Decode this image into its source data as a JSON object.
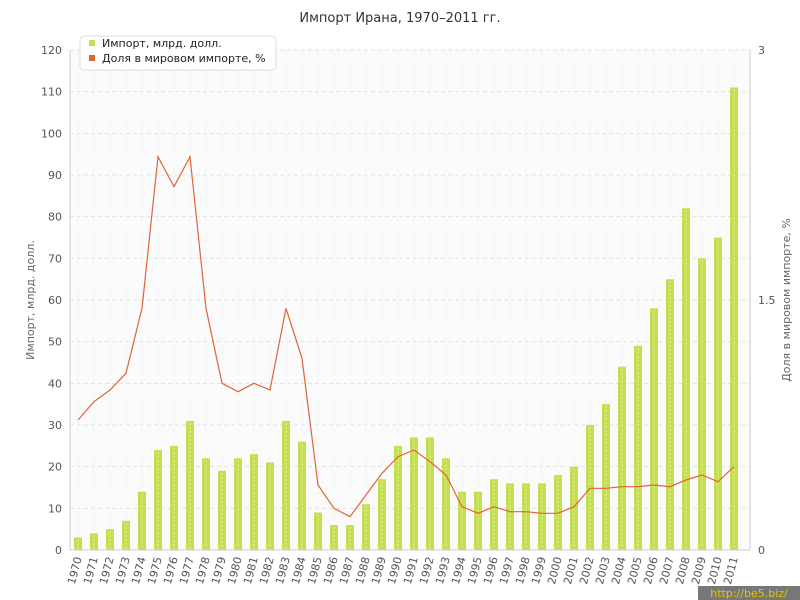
{
  "chart_data": {
    "type": "bar+line",
    "title": "Импорт Ирана, 1970–2011 гг.",
    "ylabel": "Импорт, млрд. долл.",
    "y2label": "Доля в мировом импорте, %",
    "ylim": [
      0,
      120
    ],
    "y2lim": [
      0,
      3
    ],
    "yticks": [
      "0",
      "10",
      "20",
      "30",
      "40",
      "50",
      "60",
      "70",
      "80",
      "90",
      "100",
      "110",
      "120"
    ],
    "y2ticks": [
      "0",
      "1.5",
      "3"
    ],
    "categories": [
      "1970",
      "1971",
      "1972",
      "1973",
      "1974",
      "1975",
      "1976",
      "1977",
      "1978",
      "1979",
      "1980",
      "1981",
      "1982",
      "1983",
      "1984",
      "1985",
      "1986",
      "1987",
      "1988",
      "1989",
      "1990",
      "1991",
      "1992",
      "1993",
      "1994",
      "1995",
      "1996",
      "1997",
      "1998",
      "1999",
      "2000",
      "2001",
      "2002",
      "2003",
      "2004",
      "2005",
      "2006",
      "2007",
      "2008",
      "2009",
      "2010",
      "2011"
    ],
    "series": [
      {
        "name": "Импорт, млрд. долл.",
        "type": "bar",
        "axis": "left",
        "color": "#c5df52",
        "values": [
          3,
          4,
          5,
          7,
          14,
          24,
          25,
          31,
          22,
          19,
          22,
          23,
          21,
          31,
          26,
          9,
          6,
          6,
          11,
          17,
          25,
          27,
          27,
          22,
          14,
          14,
          17,
          16,
          16,
          16,
          18,
          20,
          30,
          35,
          44,
          49,
          58,
          65,
          82,
          70,
          75,
          111
        ]
      },
      {
        "name": "Доля в мировом импорте, %",
        "type": "line",
        "axis": "right",
        "color": "#e0643a",
        "values": [
          0.78,
          0.89,
          0.96,
          1.06,
          1.45,
          2.36,
          2.18,
          2.36,
          1.45,
          1.0,
          0.95,
          1.0,
          0.96,
          1.45,
          1.15,
          0.39,
          0.25,
          0.2,
          0.33,
          0.46,
          0.56,
          0.6,
          0.53,
          0.45,
          0.26,
          0.22,
          0.26,
          0.23,
          0.23,
          0.22,
          0.22,
          0.26,
          0.37,
          0.37,
          0.38,
          0.38,
          0.39,
          0.38,
          0.42,
          0.45,
          0.41,
          0.5
        ]
      }
    ],
    "legend_position": "top-left",
    "grid": true,
    "watermark": "http://be5.biz/"
  }
}
